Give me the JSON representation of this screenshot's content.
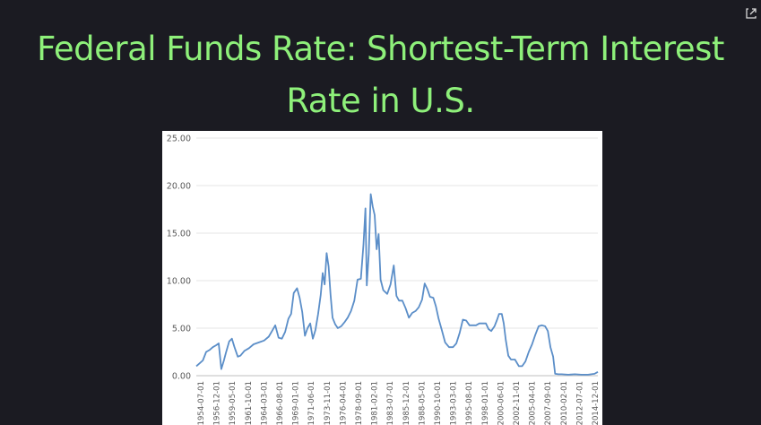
{
  "slide": {
    "title_line1": "Federal Funds Rate: Shortest-Term Interest",
    "title_line2": "Rate in U.S."
  },
  "icons": {
    "expand": "expand-arrow-icon"
  },
  "colors": {
    "title": "#8ef07a",
    "background": "#1b1b22",
    "series": "#5b8ec8",
    "grid": "#e4e4e4"
  },
  "chart_data": {
    "type": "line",
    "title": "",
    "xlabel": "",
    "ylabel": "",
    "ylim": [
      0,
      25
    ],
    "yticks": [
      "25.00",
      "20.00",
      "15.00",
      "10.00",
      "5.00",
      "0.00"
    ],
    "grid": true,
    "legend": "none",
    "xticks": [
      "1954-07-01",
      "1956-12-01",
      "1959-05-01",
      "1961-10-01",
      "1964-03-01",
      "1966-08-01",
      "1969-01-01",
      "1971-06-01",
      "1973-11-01",
      "1976-04-01",
      "1978-09-01",
      "1981-02-01",
      "1983-07-01",
      "1985-12-01",
      "1988-05-01",
      "1990-10-01",
      "1993-03-01",
      "1995-08-01",
      "1998-01-01",
      "2000-06-01",
      "2002-11-01",
      "2005-04-01",
      "2007-09-01",
      "2010-02-01",
      "2012-07-01",
      "2014-12-01"
    ],
    "series": [
      {
        "x": [
          1954.5,
          1955.0,
          1955.5,
          1956.0,
          1956.5,
          1957.0,
          1957.5,
          1957.9,
          1958.3,
          1958.7,
          1959.0,
          1959.5,
          1959.9,
          1960.3,
          1960.8,
          1961.2,
          1961.8,
          1962.5,
          1963.2,
          1964.0,
          1964.8,
          1965.5,
          1966.0,
          1966.5,
          1967.0,
          1967.5,
          1968.0,
          1968.5,
          1968.9,
          1969.3,
          1969.8,
          1970.2,
          1970.6,
          1971.0,
          1971.4,
          1971.8,
          1972.2,
          1972.6,
          1973.0,
          1973.4,
          1973.7,
          1974.0,
          1974.3,
          1974.6,
          1974.9,
          1975.2,
          1975.6,
          1976.0,
          1976.5,
          1977.0,
          1977.5,
          1978.0,
          1978.5,
          1979.0,
          1979.5,
          1979.9,
          1980.2,
          1980.4,
          1980.7,
          1981.0,
          1981.3,
          1981.6,
          1981.9,
          1982.2,
          1982.5,
          1982.9,
          1983.5,
          1984.0,
          1984.5,
          1984.9,
          1985.3,
          1985.8,
          1986.3,
          1986.8,
          1987.3,
          1987.8,
          1988.3,
          1988.8,
          1989.2,
          1989.6,
          1990.0,
          1990.5,
          1990.9,
          1991.3,
          1991.8,
          1992.3,
          1992.9,
          1993.5,
          1994.0,
          1994.5,
          1995.0,
          1995.5,
          1996.0,
          1996.5,
          1997.0,
          1997.5,
          1998.0,
          1998.5,
          1998.9,
          1999.3,
          1999.8,
          2000.2,
          2000.5,
          2000.9,
          2001.2,
          2001.5,
          2001.9,
          2002.3,
          2002.9,
          2003.5,
          2004.0,
          2004.5,
          2005.0,
          2005.5,
          2006.0,
          2006.5,
          2007.0,
          2007.5,
          2007.9,
          2008.3,
          2008.7,
          2009.0,
          2009.5,
          2010.0,
          2011.0,
          2012.0,
          2013.0,
          2014.0,
          2015.0,
          2015.5
        ],
        "values": [
          1.0,
          1.3,
          1.6,
          2.5,
          2.7,
          3.0,
          3.2,
          3.4,
          0.7,
          1.6,
          2.4,
          3.6,
          3.9,
          3.0,
          2.0,
          2.1,
          2.6,
          2.9,
          3.3,
          3.5,
          3.7,
          4.1,
          4.7,
          5.3,
          4.0,
          3.9,
          4.6,
          6.0,
          6.5,
          8.7,
          9.2,
          8.2,
          6.7,
          4.2,
          5.0,
          5.5,
          3.9,
          4.8,
          6.5,
          8.5,
          10.8,
          9.6,
          12.9,
          11.5,
          8.5,
          6.1,
          5.4,
          5.0,
          5.2,
          5.6,
          6.1,
          6.8,
          7.9,
          10.1,
          10.2,
          13.8,
          17.6,
          9.5,
          12.8,
          19.1,
          17.8,
          16.9,
          13.3,
          14.9,
          10.1,
          9.0,
          8.6,
          9.6,
          11.6,
          8.4,
          7.9,
          7.9,
          7.1,
          6.1,
          6.6,
          6.8,
          7.2,
          8.0,
          9.7,
          9.1,
          8.3,
          8.2,
          7.3,
          6.0,
          4.8,
          3.5,
          3.0,
          3.0,
          3.4,
          4.5,
          5.9,
          5.8,
          5.3,
          5.3,
          5.3,
          5.5,
          5.5,
          5.5,
          4.9,
          4.7,
          5.2,
          5.9,
          6.5,
          6.5,
          5.5,
          3.8,
          2.1,
          1.7,
          1.7,
          1.0,
          1.0,
          1.5,
          2.5,
          3.3,
          4.3,
          5.2,
          5.3,
          5.2,
          4.7,
          3.0,
          2.0,
          0.2,
          0.15,
          0.15,
          0.1,
          0.15,
          0.1,
          0.1,
          0.2,
          0.4
        ]
      }
    ]
  }
}
